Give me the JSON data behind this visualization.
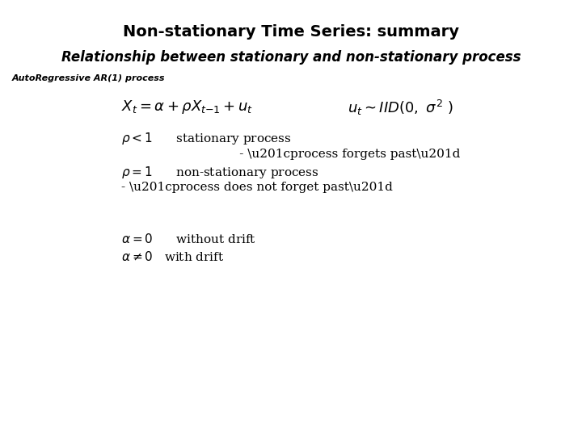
{
  "title": "Non-stationary Time Series: summary",
  "subtitle": "Relationship between stationary and non-stationary process",
  "subtitle2": "AutoRegressive AR(1) process",
  "bg_color": "#ffffff",
  "text_color": "#000000",
  "title_fontsize": 14,
  "subtitle_fontsize": 12,
  "subtitle2_fontsize": 8,
  "formula_fontsize": 13,
  "body_fontsize": 11
}
